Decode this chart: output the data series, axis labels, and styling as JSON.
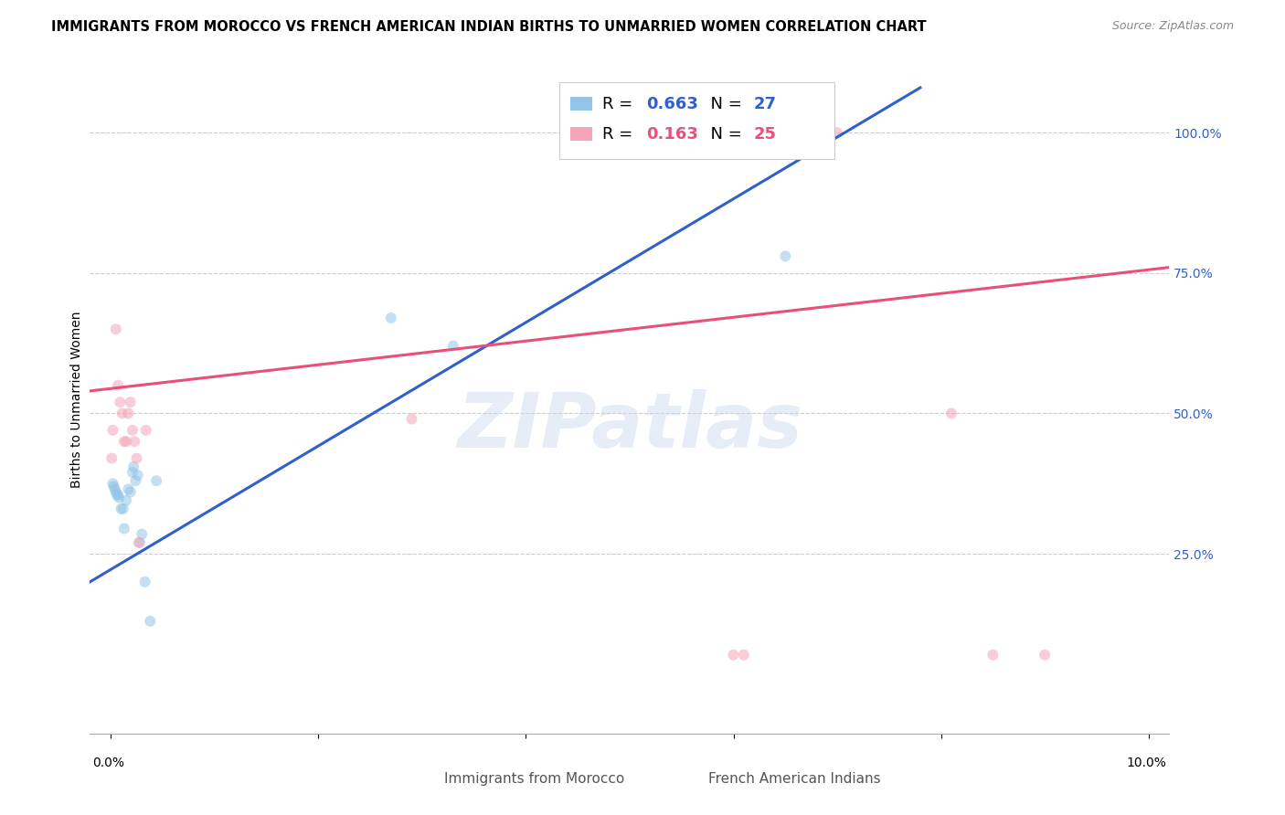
{
  "title": "IMMIGRANTS FROM MOROCCO VS FRENCH AMERICAN INDIAN BIRTHS TO UNMARRIED WOMEN CORRELATION CHART",
  "source": "Source: ZipAtlas.com",
  "ylabel": "Births to Unmarried Women",
  "ytick_values": [
    0.25,
    0.5,
    0.75,
    1.0
  ],
  "ytick_labels": [
    "25.0%",
    "50.0%",
    "75.0%",
    "100.0%"
  ],
  "xlim": [
    -0.002,
    0.102
  ],
  "ylim": [
    -0.07,
    1.12
  ],
  "legend_blue_label": "Immigrants from Morocco",
  "legend_pink_label": "French American Indians",
  "R_blue": "0.663",
  "N_blue": "27",
  "R_pink": "0.163",
  "N_pink": "25",
  "watermark": "ZIPatlas",
  "blue_x": [
    0.0002,
    0.0003,
    0.0004,
    0.0005,
    0.0006,
    0.0007,
    0.0008,
    0.001,
    0.0012,
    0.0013,
    0.0015,
    0.0017,
    0.0019,
    0.0021,
    0.0022,
    0.0024,
    0.0026,
    0.0028,
    0.003,
    0.0033,
    0.0038,
    0.0044,
    0.027,
    0.033,
    0.059,
    0.06,
    0.065
  ],
  "blue_y": [
    0.375,
    0.37,
    0.365,
    0.36,
    0.355,
    0.355,
    0.35,
    0.33,
    0.33,
    0.295,
    0.345,
    0.365,
    0.36,
    0.395,
    0.405,
    0.38,
    0.39,
    0.27,
    0.285,
    0.2,
    0.13,
    0.38,
    0.67,
    0.62,
    1.0,
    1.0,
    0.78
  ],
  "pink_x": [
    0.0001,
    0.0002,
    0.0005,
    0.0007,
    0.0009,
    0.0011,
    0.0013,
    0.0015,
    0.0017,
    0.0019,
    0.0021,
    0.0023,
    0.0025,
    0.0027,
    0.0034,
    0.029,
    0.06,
    0.061,
    0.064,
    0.065,
    0.068,
    0.07,
    0.081,
    0.085,
    0.09
  ],
  "pink_y": [
    0.42,
    0.47,
    0.65,
    0.55,
    0.52,
    0.5,
    0.45,
    0.45,
    0.5,
    0.52,
    0.47,
    0.45,
    0.42,
    0.27,
    0.47,
    0.49,
    0.07,
    0.07,
    1.0,
    1.0,
    1.0,
    1.0,
    0.5,
    0.07,
    0.07
  ],
  "blue_line_x0": -0.002,
  "blue_line_x1": 0.078,
  "blue_line_y0": 0.2,
  "blue_line_y1": 1.08,
  "pink_line_x0": -0.002,
  "pink_line_x1": 0.102,
  "pink_line_y0": 0.54,
  "pink_line_y1": 0.76,
  "scatter_size": 75,
  "scatter_alpha": 0.55,
  "blue_color": "#93C5E8",
  "pink_color": "#F4A5B8",
  "blue_line_color": "#3060CC",
  "pink_line_color": "#E8507A",
  "blue_text_color": "#3060CC",
  "pink_text_color": "#E8507A",
  "grid_color": "#CCCCCC",
  "bg_color": "#FFFFFF",
  "title_fontsize": 10.5,
  "legend_fontsize": 13,
  "ylabel_fontsize": 10,
  "tick_fontsize": 10
}
